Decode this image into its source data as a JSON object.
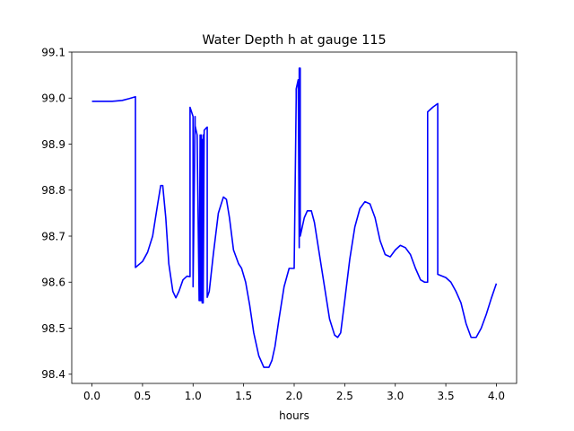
{
  "chart_data": {
    "type": "line",
    "title": "Water Depth h at gauge 115",
    "xlabel": "hours",
    "ylabel": "",
    "xlim": [
      -0.2,
      4.2
    ],
    "ylim": [
      98.38,
      99.1
    ],
    "xticks": [
      0.0,
      0.5,
      1.0,
      1.5,
      2.0,
      2.5,
      3.0,
      3.5,
      4.0
    ],
    "xtick_labels": [
      "0.0",
      "0.5",
      "1.0",
      "1.5",
      "2.0",
      "2.5",
      "3.0",
      "3.5",
      "4.0"
    ],
    "yticks": [
      98.4,
      98.5,
      98.6,
      98.7,
      98.8,
      98.9,
      99.0,
      99.1
    ],
    "ytick_labels": [
      "98.4",
      "98.5",
      "98.6",
      "98.7",
      "98.8",
      "98.9",
      "99.0",
      "99.1"
    ],
    "grid": false,
    "series": [
      {
        "color": "#0000ff",
        "x": [
          0.0,
          0.2,
          0.3,
          0.37,
          0.43,
          0.43,
          0.5,
          0.55,
          0.6,
          0.65,
          0.68,
          0.7,
          0.73,
          0.76,
          0.8,
          0.83,
          0.86,
          0.9,
          0.94,
          0.97,
          0.97,
          1.0,
          1.0,
          1.02,
          1.02,
          1.04,
          1.06,
          1.07,
          1.07,
          1.08,
          1.08,
          1.09,
          1.09,
          1.1,
          1.1,
          1.11,
          1.13,
          1.14,
          1.14,
          1.16,
          1.2,
          1.25,
          1.3,
          1.33,
          1.36,
          1.4,
          1.45,
          1.48,
          1.52,
          1.56,
          1.6,
          1.65,
          1.7,
          1.75,
          1.78,
          1.81,
          1.85,
          1.9,
          1.95,
          2.0,
          2.02,
          2.02,
          2.04,
          2.05,
          2.05,
          2.06,
          2.06,
          2.08,
          2.1,
          2.13,
          2.17,
          2.2,
          2.25,
          2.3,
          2.35,
          2.4,
          2.43,
          2.46,
          2.5,
          2.55,
          2.6,
          2.65,
          2.7,
          2.75,
          2.8,
          2.85,
          2.9,
          2.95,
          3.0,
          3.05,
          3.1,
          3.15,
          3.2,
          3.25,
          3.29,
          3.32,
          3.32,
          3.37,
          3.42,
          3.42,
          3.5,
          3.55,
          3.6,
          3.65,
          3.7,
          3.75,
          3.8,
          3.85,
          3.9,
          3.95,
          4.0
        ],
        "y": [
          98.993,
          98.993,
          98.995,
          98.999,
          99.003,
          98.632,
          98.645,
          98.665,
          98.7,
          98.77,
          98.81,
          98.81,
          98.74,
          98.64,
          98.58,
          98.566,
          98.58,
          98.605,
          98.613,
          98.612,
          98.98,
          98.96,
          98.59,
          98.96,
          98.94,
          98.92,
          98.56,
          98.92,
          98.56,
          98.92,
          98.56,
          98.91,
          98.555,
          98.92,
          98.555,
          98.93,
          98.935,
          98.937,
          98.567,
          98.58,
          98.66,
          98.75,
          98.785,
          98.78,
          98.74,
          98.67,
          98.64,
          98.63,
          98.6,
          98.55,
          98.49,
          98.44,
          98.415,
          98.415,
          98.43,
          98.46,
          98.52,
          98.59,
          98.63,
          98.63,
          99.0,
          99.02,
          99.04,
          98.675,
          99.065,
          99.065,
          98.7,
          98.72,
          98.74,
          98.755,
          98.755,
          98.73,
          98.66,
          98.59,
          98.52,
          98.485,
          98.48,
          98.49,
          98.56,
          98.65,
          98.72,
          98.76,
          98.775,
          98.77,
          98.74,
          98.69,
          98.66,
          98.655,
          98.67,
          98.68,
          98.675,
          98.66,
          98.63,
          98.605,
          98.6,
          98.6,
          98.97,
          98.98,
          98.988,
          98.617,
          98.61,
          98.6,
          98.58,
          98.555,
          98.51,
          98.48,
          98.48,
          98.5,
          98.53,
          98.565,
          98.597
        ]
      }
    ]
  }
}
